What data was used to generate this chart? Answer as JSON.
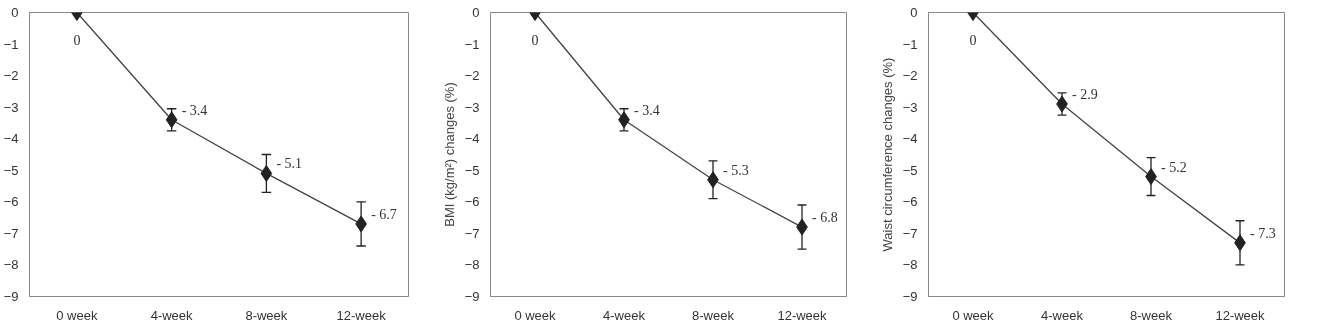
{
  "chart_data": [
    {
      "type": "line",
      "categories": [
        "0 week",
        "4-week",
        "8-week",
        "12-week"
      ],
      "ylim": [
        -9,
        0
      ],
      "yticks": [
        0,
        -1,
        -2,
        -3,
        -4,
        -5,
        -6,
        -7,
        -8,
        -9
      ],
      "grid": false,
      "marker": "diamond",
      "line_style": "solid",
      "series": [
        {
          "color": "#222222",
          "values": [
            0,
            -3.4,
            -5.1,
            -6.7
          ],
          "errors": [
            null,
            0.35,
            0.6,
            0.7
          ],
          "value_labels": [
            "0",
            "- 3.4",
            "- 5.1",
            "- 6.7"
          ]
        }
      ]
    },
    {
      "type": "line",
      "ylabel": "BMI (kg/m²) changes (%)",
      "categories": [
        "0 week",
        "4-week",
        "8-week",
        "12-week"
      ],
      "ylim": [
        -9,
        0
      ],
      "yticks": [
        0,
        -1,
        -2,
        -3,
        -4,
        -5,
        -6,
        -7,
        -8,
        -9
      ],
      "grid": false,
      "marker": "diamond",
      "line_style": "solid",
      "series": [
        {
          "color": "#222222",
          "values": [
            0,
            -3.4,
            -5.3,
            -6.8
          ],
          "errors": [
            null,
            0.35,
            0.6,
            0.7
          ],
          "value_labels": [
            "0",
            "- 3.4",
            "- 5.3",
            "- 6.8"
          ]
        }
      ]
    },
    {
      "type": "line",
      "ylabel": "Waist circumference changes (%)",
      "categories": [
        "0 week",
        "4-week",
        "8-week",
        "12-week"
      ],
      "ylim": [
        -9,
        0
      ],
      "yticks": [
        0,
        -1,
        -2,
        -3,
        -4,
        -5,
        -6,
        -7,
        -8,
        -9
      ],
      "grid": false,
      "marker": "diamond",
      "line_style": "solid",
      "series": [
        {
          "color": "#222222",
          "values": [
            0,
            -2.9,
            -5.2,
            -7.3
          ],
          "errors": [
            null,
            0.35,
            0.6,
            0.7
          ],
          "value_labels": [
            "0",
            "- 2.9",
            "- 5.2",
            "- 7.3"
          ]
        }
      ]
    }
  ]
}
